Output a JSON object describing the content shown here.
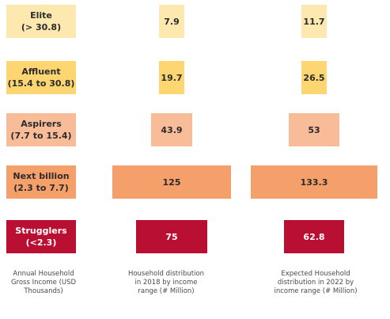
{
  "colors": {
    "elite": "#fde8b0",
    "affluent": "#fdd672",
    "aspirers": "#f8bc99",
    "next_billion": "#f5a06a",
    "strugglers": "#b90f33",
    "dark_text": "#2b2b2b",
    "light_text": "#ffffff"
  },
  "footers": {
    "col1": "Annual Household Gross Income (USD Thousands)",
    "col2": "Household distribution in 2018 by income range (# Million)",
    "col3": "Expected Household distribution in 2022 by income range (# Million)"
  },
  "chart_data": {
    "type": "bar",
    "orientation": "horizontal-centered",
    "categories": [
      "Elite (> 30.8)",
      "Affluent (15.4 to 30.8)",
      "Aspirers (7.7 to 15.4)",
      "Next billion (2.3 to 7.7)",
      "Strugglers (<2.3)"
    ],
    "category_labels": [
      {
        "name": "Elite",
        "range": "(> 30.8)"
      },
      {
        "name": "Affluent",
        "range": "(15.4 to 30.8)"
      },
      {
        "name": "Aspirers",
        "range": "(7.7 to 15.4)"
      },
      {
        "name": "Next billion",
        "range": "(2.3 to 7.7)"
      },
      {
        "name": "Strugglers",
        "range": "(<2.3)"
      }
    ],
    "series": [
      {
        "values": [
          7.9,
          19.7,
          43.9,
          125,
          75
        ],
        "labels": [
          "7.9",
          "19.7",
          "43.9",
          "125",
          "75"
        ]
      },
      {
        "values": [
          11.7,
          26.5,
          53,
          133.3,
          62.8
        ],
        "labels": [
          "11.7",
          "26.5",
          "53",
          "133.3",
          "62.8"
        ]
      }
    ]
  }
}
